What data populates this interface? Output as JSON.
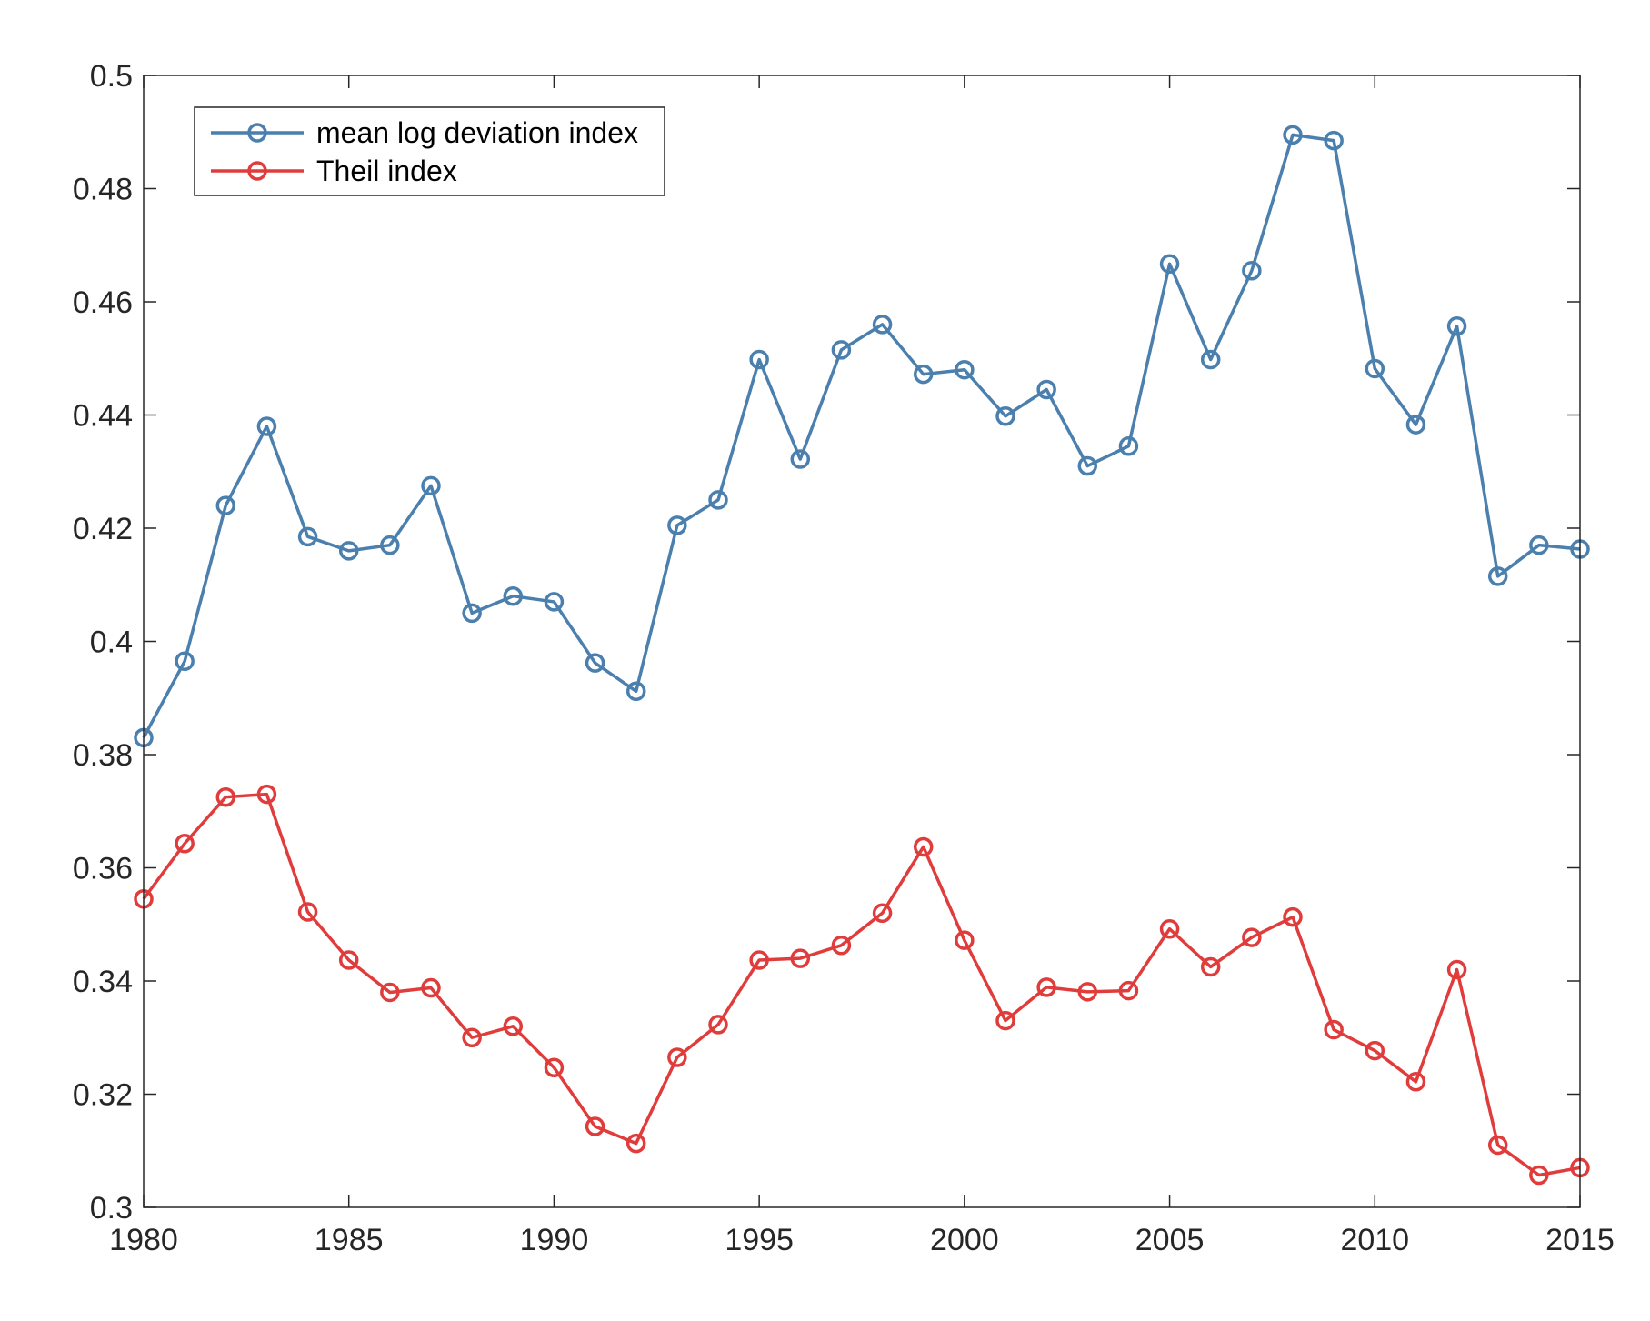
{
  "chart_data": {
    "type": "line",
    "title": "",
    "xlabel": "",
    "ylabel": "",
    "xlim": [
      1980,
      2015
    ],
    "ylim": [
      0.3,
      0.5
    ],
    "grid": false,
    "legend_position": "top-left",
    "x_ticks": [
      1980,
      1985,
      1990,
      1995,
      2000,
      2005,
      2010,
      2015
    ],
    "x_tick_labels": [
      "1980",
      "1985",
      "1990",
      "1995",
      "2000",
      "2005",
      "2010",
      "2015"
    ],
    "y_ticks": [
      0.3,
      0.32,
      0.34,
      0.36,
      0.38,
      0.4,
      0.42,
      0.44,
      0.46,
      0.48,
      0.5
    ],
    "y_tick_labels": [
      "0.3",
      "0.32",
      "0.34",
      "0.36",
      "0.38",
      "0.4",
      "0.42",
      "0.44",
      "0.46",
      "0.48",
      "0.5"
    ],
    "x": [
      1980,
      1981,
      1982,
      1983,
      1984,
      1985,
      1986,
      1987,
      1988,
      1989,
      1990,
      1991,
      1992,
      1993,
      1994,
      1995,
      1996,
      1997,
      1998,
      1999,
      2000,
      2001,
      2002,
      2003,
      2004,
      2005,
      2006,
      2007,
      2008,
      2009,
      2010,
      2011,
      2012,
      2013,
      2014,
      2015
    ],
    "series": [
      {
        "name": "mean log deviation index",
        "color": "#4a7fae",
        "values": [
          0.383,
          0.3965,
          0.424,
          0.438,
          0.4185,
          0.416,
          0.417,
          0.4275,
          0.405,
          0.408,
          0.407,
          0.3962,
          0.3912,
          0.4205,
          0.425,
          0.4498,
          0.4322,
          0.4515,
          0.456,
          0.4472,
          0.448,
          0.4398,
          0.4445,
          0.431,
          0.4345,
          0.4667,
          0.4498,
          0.4655,
          0.4895,
          0.4885,
          0.4482,
          0.4383,
          0.4557,
          0.4115,
          0.417,
          0.4163
        ]
      },
      {
        "name": "Theil index",
        "color": "#e03c3c",
        "values": [
          0.3545,
          0.3643,
          0.3725,
          0.373,
          0.3522,
          0.3437,
          0.338,
          0.3388,
          0.33,
          0.332,
          0.3247,
          0.3143,
          0.3113,
          0.3265,
          0.3323,
          0.3437,
          0.344,
          0.3463,
          0.352,
          0.3637,
          0.3472,
          0.333,
          0.3389,
          0.3381,
          0.3383,
          0.3492,
          0.3425,
          0.3477,
          0.3513,
          0.3314,
          0.3277,
          0.3222,
          0.342,
          0.311,
          0.3057,
          0.307
        ]
      }
    ]
  }
}
